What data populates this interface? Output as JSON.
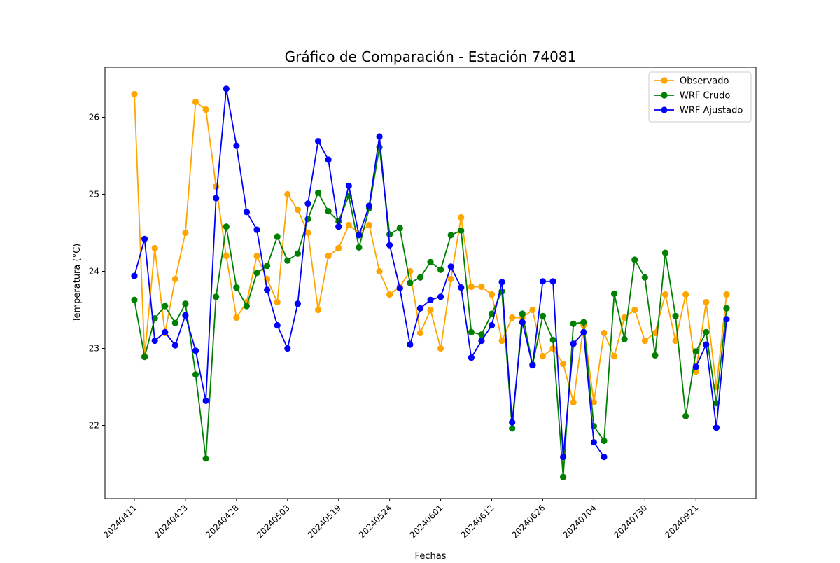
{
  "chart_data": {
    "type": "line",
    "title": "Gráfico de Comparación - Estación 74081",
    "xlabel": "Fechas",
    "ylabel": "Temperatura (°C)",
    "ylim": [
      21.05,
      26.65
    ],
    "yticks": [
      22,
      23,
      24,
      25,
      26
    ],
    "grid": false,
    "legend_position": "top-right",
    "x_tick_labels": [
      "20240411",
      "20240423",
      "20240428",
      "20240503",
      "20240519",
      "20240524",
      "20240601",
      "20240612",
      "20240626",
      "20240704",
      "20240730",
      "20240921"
    ],
    "x_tick_every": 5,
    "x_tick_start": 0,
    "series": [
      {
        "name": "Observado",
        "color": "#ffa500",
        "values": [
          26.3,
          22.9,
          24.3,
          23.2,
          23.9,
          24.5,
          26.2,
          26.1,
          25.1,
          24.2,
          23.4,
          23.6,
          24.2,
          23.9,
          23.6,
          25.0,
          24.8,
          24.5,
          23.5,
          24.2,
          24.3,
          24.6,
          24.5,
          24.6,
          24.0,
          23.7,
          23.8,
          24.0,
          23.2,
          23.5,
          23.0,
          23.9,
          24.7,
          23.8,
          23.8,
          23.7,
          23.1,
          23.4,
          23.4,
          23.5,
          22.9,
          23.0,
          22.8,
          22.3,
          23.3,
          22.3,
          23.2,
          22.9,
          23.4,
          23.5,
          23.1,
          23.2,
          23.7,
          23.1,
          23.7,
          22.7,
          23.6,
          22.5,
          23.7
        ]
      },
      {
        "name": "WRF Crudo",
        "color": "#008000",
        "values": [
          23.63,
          22.89,
          23.39,
          23.55,
          23.33,
          23.58,
          22.66,
          21.57,
          23.67,
          24.58,
          23.79,
          23.55,
          23.98,
          24.07,
          24.45,
          24.14,
          24.23,
          24.68,
          25.02,
          24.78,
          24.65,
          24.98,
          24.31,
          24.82,
          25.61,
          24.48,
          24.56,
          23.85,
          23.92,
          24.12,
          24.02,
          24.47,
          24.53,
          23.21,
          23.18,
          23.45,
          23.74,
          21.96,
          23.45,
          22.79,
          23.42,
          23.11,
          21.33,
          23.32,
          23.34,
          21.99,
          21.8,
          23.71,
          23.12,
          24.15,
          23.92,
          22.91,
          24.24,
          23.42,
          22.12,
          22.96,
          23.21,
          22.29,
          23.52
        ]
      },
      {
        "name": "WRF Ajustado",
        "color": "#0000ff",
        "values": [
          23.94,
          24.42,
          23.1,
          23.21,
          23.04,
          23.43,
          22.97,
          22.32,
          24.95,
          26.37,
          25.63,
          24.77,
          24.54,
          23.76,
          23.3,
          23.0,
          23.58,
          24.88,
          25.69,
          25.45,
          24.58,
          25.11,
          24.47,
          24.85,
          25.75,
          24.34,
          23.78,
          23.05,
          23.52,
          23.63,
          23.67,
          24.06,
          23.79,
          22.88,
          23.1,
          23.3,
          23.86,
          22.04,
          23.34,
          22.78,
          23.87,
          23.87,
          21.59,
          23.06,
          23.21,
          21.78,
          21.59,
          null,
          null,
          null,
          null,
          null,
          null,
          null,
          null,
          22.76,
          23.05,
          21.97,
          23.38
        ]
      }
    ]
  }
}
